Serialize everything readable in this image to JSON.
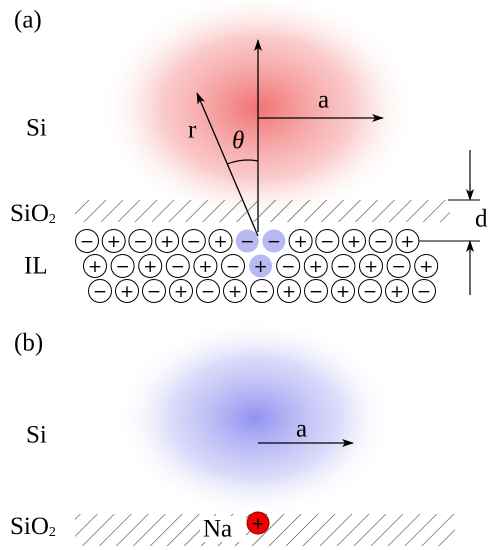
{
  "panel_a": {
    "label": "(a)",
    "si": "Si",
    "a": "a",
    "r": "r",
    "theta": "θ",
    "sio2": {
      "main": "SiO",
      "sub": "2"
    },
    "d": "d",
    "il": "IL",
    "il_rows": [
      [
        "−",
        "+",
        "−",
        "+",
        "−",
        "+",
        "−",
        "−",
        "+",
        "−",
        "+",
        "−",
        "+"
      ],
      [
        "+",
        "−",
        "+",
        "−",
        "+",
        "−",
        "+",
        "−",
        "+",
        "−",
        "+",
        "−",
        "+"
      ],
      [
        "−",
        "+",
        "−",
        "+",
        "−",
        "+",
        "−",
        "+",
        "−",
        "+",
        "−",
        "+",
        "−"
      ]
    ]
  },
  "panel_b": {
    "label": "(b)",
    "si": "Si",
    "a": "a",
    "sio2": {
      "main": "SiO",
      "sub": "2"
    },
    "na": "Na",
    "na_charge": "+"
  }
}
